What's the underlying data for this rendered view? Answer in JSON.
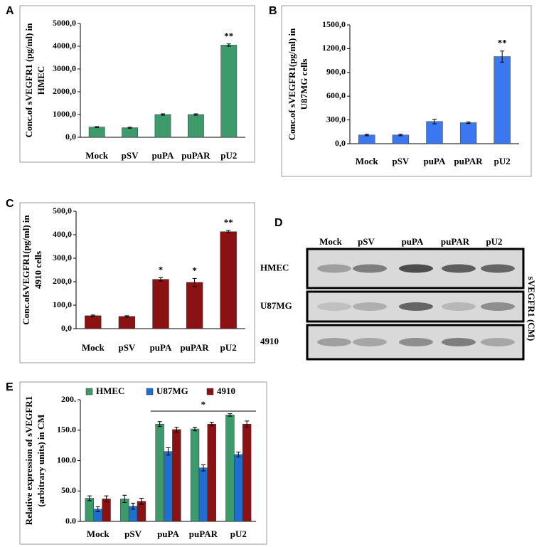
{
  "chart_data": [
    {
      "type": "bar",
      "panel": "A",
      "ylabel": [
        "Conc.of sVEGFR1 (pg/ml) in",
        "HMEC"
      ],
      "categories": [
        "Mock",
        "pSV",
        "puPA",
        "puPAR",
        "pU2"
      ],
      "values": [
        450,
        420,
        1000,
        1000,
        4050
      ],
      "errors": [
        20,
        20,
        30,
        30,
        50
      ],
      "color": "#3d9a6b",
      "ylim": [
        0,
        5000
      ],
      "yticks": [
        {
          "value": 0,
          "label": "0,0"
        },
        {
          "value": 1000,
          "label": "1000,0"
        },
        {
          "value": 2000,
          "label": "2000,0"
        },
        {
          "value": 3000,
          "label": "3000,0"
        },
        {
          "value": 4000,
          "label": "4000,0"
        },
        {
          "value": 5000,
          "label": "5000,0"
        }
      ],
      "annotations": [
        {
          "x": "pU2",
          "text": "**"
        }
      ]
    },
    {
      "type": "bar",
      "panel": "B",
      "ylabel": [
        "Conc.of sVEGFR1(pg/ml) in",
        "U87MG cells"
      ],
      "categories": [
        "Mock",
        "pSV",
        "puPA",
        "puPAR",
        "pU2"
      ],
      "values": [
        110,
        110,
        280,
        265,
        1100
      ],
      "errors": [
        10,
        10,
        30,
        10,
        70
      ],
      "color": "#3b78f0",
      "ylim": [
        0,
        1500
      ],
      "yticks": [
        {
          "value": 0,
          "label": "0,0"
        },
        {
          "value": 300,
          "label": "300,0"
        },
        {
          "value": 600,
          "label": "600,0"
        },
        {
          "value": 900,
          "label": "900,0"
        },
        {
          "value": 1200,
          "label": "1200,0"
        },
        {
          "value": 1500,
          "label": "1500,0"
        }
      ],
      "annotations": [
        {
          "x": "pU2",
          "text": "**"
        }
      ]
    },
    {
      "type": "bar",
      "panel": "C",
      "ylabel": [
        "Conc.ofsVEGFR1(pg/ml) in",
        "4910 cells"
      ],
      "categories": [
        "Mock",
        "pSV",
        "puPA",
        "puPAR",
        "pU2"
      ],
      "values": [
        55,
        52,
        210,
        197,
        413
      ],
      "errors": [
        3,
        3,
        7,
        17,
        5
      ],
      "color": "#8b1212",
      "ylim": [
        0,
        500
      ],
      "yticks": [
        {
          "value": 0,
          "label": "0,0"
        },
        {
          "value": 100,
          "label": "100,0"
        },
        {
          "value": 200,
          "label": "200,0"
        },
        {
          "value": 300,
          "label": "300,0"
        },
        {
          "value": 400,
          "label": "400,0"
        },
        {
          "value": 500,
          "label": "500,0"
        }
      ],
      "annotations": [
        {
          "x": "puPA",
          "text": "*"
        },
        {
          "x": "puPAR",
          "text": "*"
        },
        {
          "x": "pU2",
          "text": "**"
        }
      ]
    },
    {
      "type": "grouped-bar",
      "panel": "E",
      "ylabel": [
        "Relative expression of sVEGFR1",
        "(arbitrary units) in CM"
      ],
      "categories": [
        "Mock",
        "pSV",
        "puPA",
        "puPAR",
        "pU2"
      ],
      "series": [
        {
          "name": "HMEC",
          "color": "#3d9a6b",
          "values": [
            38,
            37,
            160,
            152,
            175
          ],
          "errors": [
            4,
            6,
            4,
            3,
            2
          ]
        },
        {
          "name": "U87MG",
          "color": "#1f6fd0",
          "values": [
            20,
            25,
            115,
            88,
            110
          ],
          "errors": [
            4,
            5,
            6,
            5,
            4
          ]
        },
        {
          "name": "4910",
          "color": "#8b1212",
          "values": [
            37,
            33,
            151,
            160,
            160
          ],
          "errors": [
            5,
            5,
            4,
            3,
            5
          ]
        }
      ],
      "ylim": [
        0,
        200
      ],
      "yticks": [
        {
          "value": 0,
          "label": "0.0"
        },
        {
          "value": 50,
          "label": "50.0"
        },
        {
          "value": 100,
          "label": "100.0"
        },
        {
          "value": 150,
          "label": "150.0"
        },
        {
          "value": 200,
          "label": "200."
        }
      ],
      "annotations": [
        {
          "from": "puPA",
          "to": "pU2",
          "text": "*"
        }
      ]
    }
  ],
  "blot": {
    "panel": "D",
    "columns": [
      "Mock",
      "pSV",
      "puPA",
      "puPAR",
      "pU2"
    ],
    "rows": [
      "HMEC",
      "U87MG",
      "4910"
    ],
    "side_label": "sVEGFR1 (CM)"
  }
}
